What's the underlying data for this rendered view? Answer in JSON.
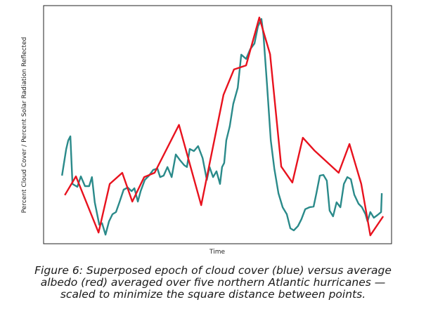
{
  "chart_data": {
    "type": "line",
    "xlabel": "Time",
    "ylabel": "Percent Cloud Cover / Percent Solar Radiation Reflected",
    "caption": [
      "Figure 6: Superposed epoch of cloud cover (blue) versus average",
      "albedo (red) averaged over five northern Atlantic hurricanes —",
      "scaled to minimize the square distance between points."
    ],
    "xlim": [
      0,
      100
    ],
    "ylim": [
      0,
      100
    ],
    "series": [
      {
        "color": "#2a8a8a",
        "x": [
          5.3,
          6.5,
          7.1,
          7.7,
          8.3,
          9.7,
          10.7,
          11.9,
          13.1,
          13.9,
          14.7,
          16.0,
          16.8,
          17.8,
          18.8,
          19.8,
          20.8,
          21.8,
          23.0,
          24.2,
          25.3,
          26.1,
          27.1,
          27.9,
          29.1,
          30.3,
          31.5,
          32.7,
          33.5,
          34.5,
          35.6,
          36.8,
          38.0,
          39.2,
          40.4,
          41.2,
          42.0,
          43.2,
          44.4,
          45.7,
          46.9,
          47.7,
          48.7,
          49.7,
          50.7,
          51.3,
          51.9,
          52.5,
          53.5,
          54.5,
          55.8,
          56.8,
          58.2,
          59.4,
          60.6,
          61.6,
          62.6,
          63.2,
          64.2,
          65.3,
          66.3,
          67.5,
          68.7,
          69.9,
          70.9,
          71.9,
          73.1,
          74.1,
          75.2,
          76.4,
          77.6,
          78.4,
          79.4,
          80.4,
          81.4,
          82.2,
          83.2,
          84.2,
          85.3,
          86.3,
          87.3,
          88.3,
          89.3,
          90.5,
          91.5,
          92.5,
          93.1,
          93.9,
          94.9,
          96.0,
          97.0,
          97.2
        ],
        "values": [
          28.6,
          39.8,
          43.4,
          45.1,
          25.1,
          23.9,
          28.3,
          24.2,
          24.2,
          28.0,
          17.4,
          8.0,
          8.6,
          3.8,
          9.4,
          12.4,
          13.3,
          17.4,
          22.7,
          23.6,
          22.1,
          23.3,
          17.7,
          22.1,
          26.8,
          28.6,
          31.0,
          31.6,
          28.0,
          28.6,
          32.2,
          28.0,
          37.5,
          35.1,
          33.0,
          32.2,
          39.8,
          38.9,
          41.0,
          36.0,
          26.8,
          32.2,
          28.0,
          30.4,
          25.1,
          32.2,
          33.9,
          43.4,
          49.3,
          58.7,
          65.5,
          79.4,
          77.6,
          81.7,
          84.1,
          91.2,
          94.4,
          87.6,
          67.0,
          43.4,
          31.6,
          21.2,
          15.3,
          12.4,
          6.5,
          5.6,
          7.4,
          10.3,
          14.5,
          15.3,
          15.6,
          21.2,
          28.6,
          28.9,
          26.5,
          13.9,
          11.5,
          17.4,
          15.3,
          25.1,
          28.0,
          27.1,
          20.6,
          16.8,
          15.3,
          12.4,
          9.4,
          13.3,
          10.9,
          12.1,
          13.3,
          21.2
        ]
      },
      {
        "color": "#e8121e",
        "x": [
          6.1,
          9.3,
          15.8,
          19.0,
          22.6,
          25.5,
          28.9,
          31.9,
          38.9,
          45.3,
          51.7,
          54.7,
          58.2,
          62.0,
          65.1,
          68.3,
          71.5,
          74.5,
          77.8,
          84.8,
          87.9,
          91.3,
          93.9,
          97.6
        ],
        "values": [
          20.4,
          28.3,
          4.7,
          25.1,
          29.8,
          17.7,
          28.0,
          29.8,
          49.9,
          16.2,
          62.5,
          73.2,
          74.9,
          95.0,
          79.6,
          32.4,
          25.7,
          44.5,
          39.2,
          29.8,
          41.9,
          25.1,
          3.5,
          11.5
        ]
      }
    ]
  }
}
